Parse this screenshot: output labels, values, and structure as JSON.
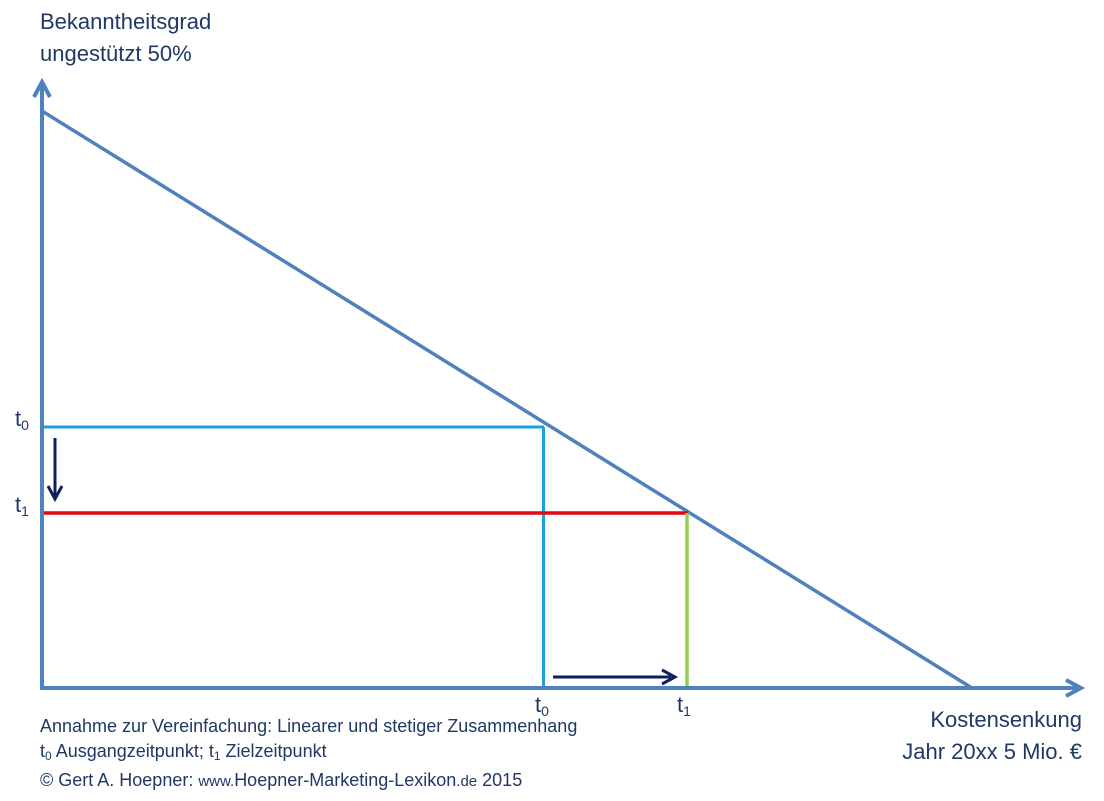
{
  "chart_data": {
    "type": "line",
    "ylabel": [
      "Bekanntheitsgrad",
      "ungestützt 50%"
    ],
    "xlabel": [
      "Kostensenkung",
      "Jahr 20xx 5 Mio. €"
    ],
    "ticks": {
      "y": [
        {
          "base": "t",
          "sub": "0"
        },
        {
          "base": "t",
          "sub": "1"
        }
      ],
      "x": [
        {
          "base": "t",
          "sub": "0"
        },
        {
          "base": "t",
          "sub": "1"
        }
      ]
    },
    "series": [],
    "lines": {
      "start": [
        0,
        100
      ],
      "end": [
        100,
        0
      ]
    },
    "guides": [
      {
        "time": "t0",
        "color": "#1ba1e2",
        "x": 54.3,
        "y": 45.7
      },
      {
        "time": "t1",
        "color_horizontal": "#e30613",
        "color_vertical": "#92d050",
        "x": 69.3,
        "y": 30.7
      }
    ],
    "colors": {
      "axis": "#4f81bd",
      "line": "#4f81bd",
      "arrow": "#0f1f5c"
    }
  },
  "notes": {
    "line1": "Annahme zur Vereinfachung: Linearer und stetiger Zusammenhang",
    "line2": {
      "t0_base": "t",
      "t0_sub": "0",
      "t0_text": " Ausgangzeitpunkt; ",
      "t1_base": "t",
      "t1_sub": "1",
      "t1_text": " Zielzeitpunkt"
    },
    "line3": {
      "prefix": "© Gert A. Hoepner: ",
      "url": "www.",
      "url_main": "Hoepner-Marketing-Lexikon",
      "url_tld": ".de",
      "year": " 2015"
    }
  }
}
